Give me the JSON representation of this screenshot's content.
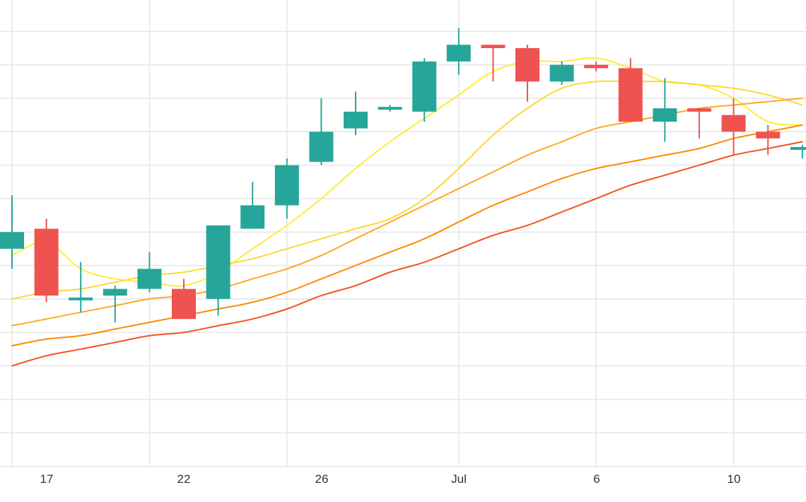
{
  "chart_data": {
    "type": "candlestick",
    "x_tick_labels": [
      "17",
      "22",
      "26",
      "Jul",
      "6",
      "10"
    ],
    "y_range": [
      0,
      14
    ],
    "grid": true,
    "colors": {
      "up": "#26a69a",
      "down": "#ef5350",
      "grid": "#e6e6e6",
      "tick_text": "#333333"
    },
    "candles": [
      {
        "o": 5.5,
        "h": 7.1,
        "l": 4.9,
        "c": 6.0
      },
      {
        "o": 6.1,
        "h": 6.4,
        "l": 3.9,
        "c": 4.1
      },
      {
        "o": 4.0,
        "h": 5.1,
        "l": 3.6,
        "c": 4.0
      },
      {
        "o": 4.1,
        "h": 4.4,
        "l": 3.3,
        "c": 4.3
      },
      {
        "o": 4.3,
        "h": 5.4,
        "l": 4.2,
        "c": 4.9
      },
      {
        "o": 4.3,
        "h": 4.6,
        "l": 3.4,
        "c": 3.4
      },
      {
        "o": 4.0,
        "h": 6.2,
        "l": 3.5,
        "c": 6.2
      },
      {
        "o": 6.1,
        "h": 7.5,
        "l": 6.1,
        "c": 6.8
      },
      {
        "o": 6.8,
        "h": 8.2,
        "l": 6.4,
        "c": 8.0
      },
      {
        "o": 8.1,
        "h": 10.0,
        "l": 8.0,
        "c": 9.0
      },
      {
        "o": 9.1,
        "h": 10.2,
        "l": 8.9,
        "c": 9.6
      },
      {
        "o": 9.7,
        "h": 9.8,
        "l": 9.6,
        "c": 9.7
      },
      {
        "o": 9.6,
        "h": 11.2,
        "l": 9.3,
        "c": 11.1
      },
      {
        "o": 11.1,
        "h": 12.1,
        "l": 10.7,
        "c": 11.6
      },
      {
        "o": 11.6,
        "h": 11.6,
        "l": 10.5,
        "c": 11.5
      },
      {
        "o": 11.5,
        "h": 11.6,
        "l": 9.9,
        "c": 10.5
      },
      {
        "o": 10.5,
        "h": 11.1,
        "l": 10.4,
        "c": 11.0
      },
      {
        "o": 11.0,
        "h": 11.1,
        "l": 10.8,
        "c": 10.9
      },
      {
        "o": 10.9,
        "h": 11.2,
        "l": 9.3,
        "c": 9.3
      },
      {
        "o": 9.3,
        "h": 10.6,
        "l": 8.7,
        "c": 9.7
      },
      {
        "o": 9.7,
        "h": 9.7,
        "l": 8.8,
        "c": 9.6
      },
      {
        "o": 9.5,
        "h": 10.0,
        "l": 8.3,
        "c": 9.0
      },
      {
        "o": 9.0,
        "h": 9.2,
        "l": 8.3,
        "c": 8.8
      },
      {
        "o": 8.5,
        "h": 8.6,
        "l": 8.2,
        "c": 8.5
      }
    ],
    "moving_averages": [
      {
        "color": "#ffeb3b",
        "values": [
          5.3,
          5.7,
          4.9,
          4.6,
          4.5,
          4.4,
          4.8,
          5.5,
          6.2,
          7.0,
          7.9,
          8.7,
          9.4,
          10.1,
          10.8,
          11.1,
          11.1,
          11.2,
          10.9,
          10.5,
          10.4,
          10.0,
          9.3,
          9.2
        ]
      },
      {
        "color": "#fdd835",
        "values": [
          4.0,
          4.2,
          4.3,
          4.5,
          4.7,
          4.8,
          5.0,
          5.2,
          5.5,
          5.8,
          6.1,
          6.4,
          7.0,
          7.9,
          8.9,
          9.7,
          10.3,
          10.5,
          10.5,
          10.5,
          10.4,
          10.3,
          10.1,
          9.8
        ]
      },
      {
        "color": "#ffa726",
        "values": [
          3.2,
          3.4,
          3.6,
          3.8,
          4.0,
          4.1,
          4.3,
          4.6,
          4.9,
          5.3,
          5.8,
          6.3,
          6.8,
          7.3,
          7.8,
          8.3,
          8.7,
          9.1,
          9.3,
          9.5,
          9.7,
          9.8,
          9.9,
          10.0
        ]
      },
      {
        "color": "#fb8c00",
        "values": [
          2.6,
          2.8,
          2.9,
          3.1,
          3.3,
          3.5,
          3.7,
          3.9,
          4.2,
          4.6,
          5.0,
          5.4,
          5.8,
          6.3,
          6.8,
          7.2,
          7.6,
          7.9,
          8.1,
          8.3,
          8.5,
          8.8,
          9.0,
          9.2
        ]
      },
      {
        "color": "#f4511e",
        "values": [
          2.0,
          2.3,
          2.5,
          2.7,
          2.9,
          3.0,
          3.2,
          3.4,
          3.7,
          4.1,
          4.4,
          4.8,
          5.1,
          5.5,
          5.9,
          6.2,
          6.6,
          7.0,
          7.4,
          7.7,
          8.0,
          8.3,
          8.5,
          8.7
        ]
      }
    ]
  }
}
